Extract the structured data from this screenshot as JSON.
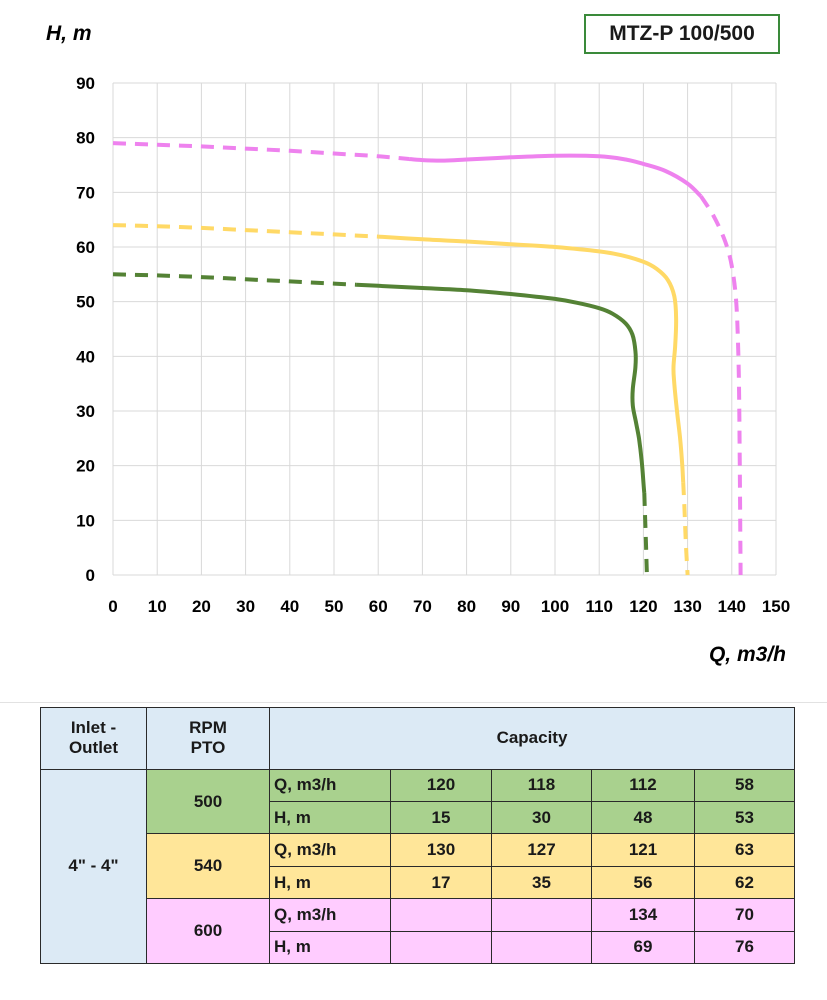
{
  "model_label": "MTZ-P 100/500",
  "chart_data": {
    "type": "line",
    "xlabel": "Q, m3/h",
    "ylabel": "H, m",
    "xlim": [
      0,
      150
    ],
    "ylim": [
      0,
      90
    ],
    "x_ticks": [
      "0",
      "10",
      "20",
      "30",
      "40",
      "50",
      "60",
      "70",
      "80",
      "90",
      "100",
      "110",
      "120",
      "130",
      "140",
      "150"
    ],
    "y_ticks": [
      "0",
      "10",
      "20",
      "30",
      "40",
      "50",
      "60",
      "70",
      "80",
      "90"
    ],
    "grid": true,
    "series": [
      {
        "rpm": "500",
        "color": "#548235",
        "dashed_start": [
          [
            0,
            55
          ],
          [
            10,
            54.8
          ],
          [
            20,
            54.5
          ],
          [
            30,
            54.1
          ],
          [
            40,
            53.7
          ],
          [
            50,
            53.3
          ],
          [
            55,
            53.1
          ]
        ],
        "solid": [
          [
            55,
            53.1
          ],
          [
            60,
            52.9
          ],
          [
            70,
            52.5
          ],
          [
            80,
            52.1
          ],
          [
            90,
            51.4
          ],
          [
            100,
            50.5
          ],
          [
            105,
            49.8
          ],
          [
            110,
            48.8
          ],
          [
            113,
            47.8
          ],
          [
            116,
            46
          ],
          [
            117.5,
            44
          ],
          [
            118.2,
            41
          ],
          [
            118.2,
            38
          ],
          [
            117.6,
            34
          ],
          [
            117.6,
            31
          ],
          [
            118.3,
            28
          ],
          [
            119,
            25
          ],
          [
            119.6,
            21
          ],
          [
            120,
            17
          ],
          [
            120.2,
            15
          ]
        ],
        "dashed_end": [
          [
            120.2,
            15
          ],
          [
            120.4,
            10
          ],
          [
            120.6,
            5
          ],
          [
            120.8,
            0
          ]
        ]
      },
      {
        "rpm": "540",
        "color": "#ffd966",
        "dashed_start": [
          [
            0,
            64
          ],
          [
            10,
            63.8
          ],
          [
            20,
            63.5
          ],
          [
            30,
            63.1
          ],
          [
            40,
            62.7
          ],
          [
            50,
            62.3
          ],
          [
            60,
            61.9
          ]
        ],
        "solid": [
          [
            60,
            61.9
          ],
          [
            70,
            61.4
          ],
          [
            80,
            61
          ],
          [
            90,
            60.5
          ],
          [
            100,
            60
          ],
          [
            110,
            59.2
          ],
          [
            115,
            58.5
          ],
          [
            120,
            57.3
          ],
          [
            123,
            56
          ],
          [
            125.5,
            54
          ],
          [
            127,
            51
          ],
          [
            127.4,
            47
          ],
          [
            127.2,
            42
          ],
          [
            126.8,
            38
          ],
          [
            127,
            35
          ],
          [
            127.6,
            30
          ],
          [
            128.3,
            25
          ],
          [
            128.8,
            20
          ],
          [
            129,
            17
          ]
        ],
        "dashed_end": [
          [
            129,
            17
          ],
          [
            129.3,
            12
          ],
          [
            129.6,
            6
          ],
          [
            130,
            0
          ]
        ]
      },
      {
        "rpm": "600",
        "color": "#ee82ee",
        "dashed_start": [
          [
            0,
            79
          ],
          [
            10,
            78.7
          ],
          [
            20,
            78.4
          ],
          [
            30,
            78
          ],
          [
            40,
            77.6
          ],
          [
            50,
            77.1
          ],
          [
            60,
            76.6
          ],
          [
            67,
            76.1
          ]
        ],
        "solid": [
          [
            67,
            76.1
          ],
          [
            70,
            75.9
          ],
          [
            75,
            75.8
          ],
          [
            80,
            76
          ],
          [
            90,
            76.4
          ],
          [
            100,
            76.7
          ],
          [
            110,
            76.6
          ],
          [
            116,
            76
          ],
          [
            120,
            75.2
          ],
          [
            125,
            73.9
          ],
          [
            130,
            71.6
          ],
          [
            133,
            69.3
          ]
        ],
        "dashed_end": [
          [
            133,
            69.3
          ],
          [
            136,
            65.5
          ],
          [
            138.5,
            61
          ],
          [
            140,
            56.5
          ],
          [
            141,
            50
          ],
          [
            141.5,
            40
          ],
          [
            141.7,
            30
          ],
          [
            141.8,
            20
          ],
          [
            141.9,
            10
          ],
          [
            142,
            0
          ]
        ]
      }
    ]
  },
  "table": {
    "header": {
      "inlet_outlet_line1": "Inlet -",
      "inlet_outlet_line2": "Outlet",
      "rpm_line1": "RPM",
      "rpm_line2": "PTO",
      "capacity": "Capacity"
    },
    "size": "4\" - 4\"",
    "groups": [
      {
        "rpm": "500",
        "q_label": "Q, m3/h",
        "h_label": "H, m",
        "q": [
          "120",
          "118",
          "112",
          "58"
        ],
        "h": [
          "15",
          "30",
          "48",
          "53"
        ]
      },
      {
        "rpm": "540",
        "q_label": "Q, m3/h",
        "h_label": "H, m",
        "q": [
          "130",
          "127",
          "121",
          "63"
        ],
        "h": [
          "17",
          "35",
          "56",
          "62"
        ]
      },
      {
        "rpm": "600",
        "q_label": "Q, m3/h",
        "h_label": "H, m",
        "q": [
          "",
          "",
          "134",
          "70"
        ],
        "h": [
          "",
          "",
          "69",
          "76"
        ]
      }
    ]
  }
}
